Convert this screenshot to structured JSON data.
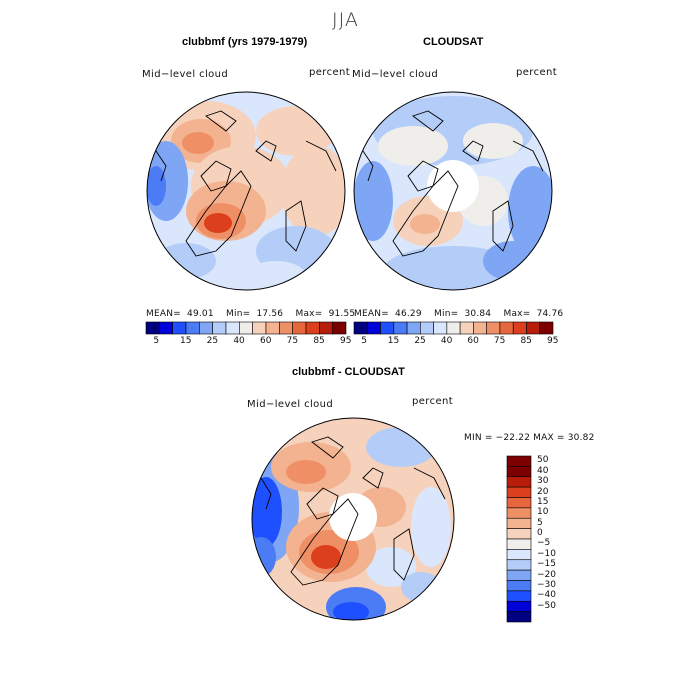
{
  "season": "JJA",
  "colors": {
    "scale": [
      "#000080",
      "#0000d8",
      "#1e50ff",
      "#4b7bf5",
      "#7ea6f5",
      "#b4cdf8",
      "#d9e6fc",
      "#f0eeea",
      "#f6d2bd",
      "#f3b290",
      "#ef8f66",
      "#e8663e",
      "#dc3f1c",
      "#b81d0b",
      "#7c0000"
    ],
    "land": "#000000"
  },
  "panels": [
    {
      "title": "clubbmf (yrs 1979-1979)",
      "variable": "Mid−level cloud",
      "units": "percent",
      "stats": {
        "mean_label": "MEAN=",
        "mean": "49.01",
        "min_label": "Min=",
        "min": "17.56",
        "max_label": "Max=",
        "max": "91.55"
      }
    },
    {
      "title": "CLOUDSAT",
      "variable": "Mid−level cloud",
      "units": "percent",
      "stats": {
        "mean_label": "MEAN=",
        "mean": "46.29",
        "min_label": "Min=",
        "min": "30.84",
        "max_label": "Max=",
        "max": "74.76"
      }
    },
    {
      "title": "clubbmf - CLOUDSAT",
      "variable": "Mid−level cloud",
      "units": "percent",
      "stats": {
        "minmax": "MIN = −22.22 MAX =  30.82"
      }
    }
  ],
  "chart_data": [
    {
      "type": "heatmap",
      "projection": "north polar stereographic",
      "title": "clubbmf (yrs 1979-1979)",
      "variable": "Mid-level cloud",
      "units": "percent",
      "mean": 49.01,
      "min": 17.56,
      "max": 91.55,
      "colorbar_levels": [
        5,
        10,
        15,
        20,
        25,
        30,
        40,
        50,
        60,
        70,
        75,
        80,
        85,
        90,
        95
      ],
      "colorbar_tick_labels": [
        "5",
        "15",
        "25",
        "40",
        "60",
        "75",
        "85",
        "95"
      ]
    },
    {
      "type": "heatmap",
      "projection": "north polar stereographic",
      "title": "CLOUDSAT",
      "variable": "Mid-level cloud",
      "units": "percent",
      "mean": 46.29,
      "min": 30.84,
      "max": 74.76,
      "colorbar_levels": [
        5,
        10,
        15,
        20,
        25,
        30,
        40,
        50,
        60,
        70,
        75,
        80,
        85,
        90,
        95
      ],
      "colorbar_tick_labels": [
        "5",
        "15",
        "25",
        "40",
        "60",
        "75",
        "85",
        "95"
      ]
    },
    {
      "type": "heatmap",
      "projection": "north polar stereographic",
      "title": "clubbmf - CLOUDSAT",
      "variable": "Mid-level cloud",
      "units": "percent",
      "min": -22.22,
      "max": 30.82,
      "colorbar_levels": [
        -50,
        -40,
        -30,
        -20,
        -15,
        -10,
        -5,
        0,
        5,
        10,
        15,
        20,
        30,
        40,
        50
      ],
      "colorbar_tick_labels": [
        "50",
        "40",
        "30",
        "20",
        "15",
        "10",
        "5",
        "0",
        "−5",
        "−10",
        "−15",
        "−20",
        "−30",
        "−40",
        "−50"
      ]
    }
  ]
}
